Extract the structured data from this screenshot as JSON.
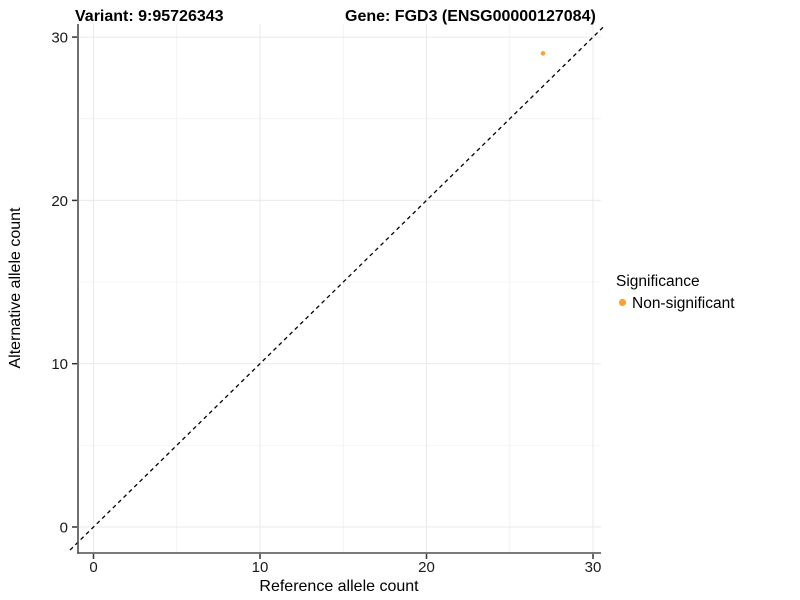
{
  "titles": {
    "variant": "Variant: 9:95726343",
    "gene": "Gene: FGD3 (ENSG00000127084)"
  },
  "chart_data": {
    "type": "scatter",
    "xlabel": "Reference allele count",
    "ylabel": "Alternative allele count",
    "x_ticks": [
      0,
      10,
      20,
      30
    ],
    "y_ticks": [
      0,
      10,
      20,
      30
    ],
    "x_minor_ticks": [
      5,
      15,
      25
    ],
    "y_minor_ticks": [
      5,
      15,
      25
    ],
    "xlim": [
      -1.5,
      31.5
    ],
    "ylim": [
      -1.5,
      31.5
    ],
    "grid": "major+minor",
    "identity_line": {
      "style": "dashed",
      "slope": 1,
      "intercept": 0,
      "color": "#000000"
    },
    "series": [
      {
        "name": "Non-significant",
        "color": "#FFA02E",
        "points": [
          {
            "x": 27,
            "y": 29
          }
        ]
      }
    ],
    "legend": {
      "position": "right",
      "title": "Significance",
      "items": [
        {
          "label": "Non-significant",
          "color": "#FFA02E"
        }
      ]
    }
  },
  "colors": {
    "point": "#FFA02E",
    "axis_line": "#4d4d4d",
    "tick_mark": "#333333",
    "grid_major": "#e9e9e9",
    "grid_minor": "#f4f4f4",
    "background": "#ffffff"
  }
}
